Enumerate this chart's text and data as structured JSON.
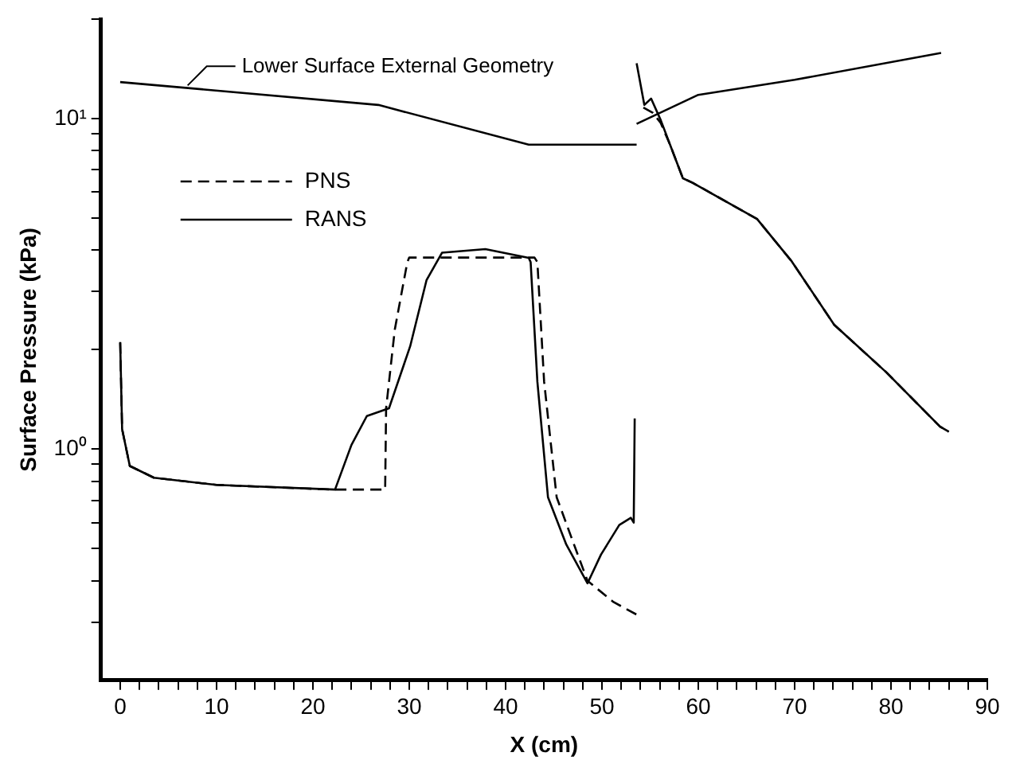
{
  "chart_data": {
    "type": "line",
    "xlabel": "X (cm)",
    "ylabel": "Surface Pressure (kPa)",
    "log": "y",
    "grid": false,
    "legend": "top left",
    "marker": "none",
    "xlim": [
      -2,
      90
    ],
    "ylim": [
      0.2,
      20
    ],
    "xticks": [
      0,
      {
        "value": 2,
        "label": null
      },
      {
        "value": 4,
        "label": null
      },
      {
        "value": 6,
        "label": null
      },
      {
        "value": 8,
        "label": null
      },
      10,
      {
        "value": 12,
        "label": null
      },
      {
        "value": 14,
        "label": null
      },
      {
        "value": 16,
        "label": null
      },
      {
        "value": 18,
        "label": null
      },
      20,
      {
        "value": 22,
        "label": null
      },
      {
        "value": 24,
        "label": null
      },
      {
        "value": 26,
        "label": null
      },
      {
        "value": 28,
        "label": null
      },
      30,
      {
        "value": 32,
        "label": null
      },
      {
        "value": 34,
        "label": null
      },
      {
        "value": 36,
        "label": null
      },
      {
        "value": 38,
        "label": null
      },
      40,
      {
        "value": 42,
        "label": null
      },
      {
        "value": 44,
        "label": null
      },
      {
        "value": 46,
        "label": null
      },
      {
        "value": 48,
        "label": null
      },
      50,
      {
        "value": 52,
        "label": null
      },
      {
        "value": 54,
        "label": null
      },
      {
        "value": 56,
        "label": null
      },
      {
        "value": 58,
        "label": null
      },
      60,
      {
        "value": 62,
        "label": null
      },
      {
        "value": 64,
        "label": null
      },
      {
        "value": 66,
        "label": null
      },
      {
        "value": 68,
        "label": null
      },
      70,
      {
        "value": 72,
        "label": null
      },
      {
        "value": 74,
        "label": null
      },
      {
        "value": 76,
        "label": null
      },
      {
        "value": 78,
        "label": null
      },
      80,
      {
        "value": 82,
        "label": null
      },
      {
        "value": 84,
        "label": null
      },
      {
        "value": 86,
        "label": null
      },
      {
        "value": 88,
        "label": null
      },
      90
    ],
    "yticks": [
      {
        "value": 0.3,
        "label": null
      },
      {
        "value": 0.4,
        "label": null
      },
      {
        "value": 0.5,
        "label": null
      },
      {
        "value": 0.6,
        "label": null
      },
      {
        "value": 0.7,
        "label": null
      },
      {
        "value": 0.8,
        "label": null
      },
      {
        "value": 0.9,
        "label": null
      },
      {
        "value": 1,
        "label": "10⁰"
      },
      {
        "value": 2,
        "label": null
      },
      {
        "value": 3,
        "label": null
      },
      {
        "value": 4,
        "label": null
      },
      {
        "value": 5,
        "label": null
      },
      {
        "value": 6,
        "label": null
      },
      {
        "value": 7,
        "label": null
      },
      {
        "value": 8,
        "label": null
      },
      {
        "value": 9,
        "label": null
      },
      {
        "value": 10,
        "label": "10¹"
      },
      {
        "value": 20,
        "label": null
      }
    ],
    "annotations": [
      {
        "text": "Lower Surface External Geometry",
        "x": 7,
        "y": 12.6
      }
    ],
    "series": [
      {
        "name": "PNS",
        "color": "#000000",
        "line_style": "dashed",
        "x": [
          0,
          0.2,
          1,
          3.5,
          10,
          22,
          27.5,
          27.6,
          28.5,
          29.8,
          30,
          43,
          43.3,
          44,
          45.3,
          47.1,
          48.5,
          51.2,
          53.7
        ],
        "values": [
          2.1,
          1.15,
          0.89,
          0.82,
          0.78,
          0.755,
          0.755,
          1.33,
          2.3,
          3.68,
          3.8,
          3.8,
          3.68,
          1.6,
          0.716,
          0.515,
          0.4,
          0.345,
          0.315
        ]
      },
      {
        "name": "RANS",
        "color": "#000000",
        "line_style": "solid",
        "x": [
          0,
          0.2,
          1,
          3.5,
          10,
          22.3,
          24,
          25.6,
          27.9,
          30.1,
          31.8,
          33.4,
          37.9,
          42.4,
          42.6,
          43.3,
          44.4,
          46.3,
          48.5,
          49.9,
          51.8,
          53.0,
          53.3,
          53.4
        ],
        "values": [
          2.11,
          1.15,
          0.89,
          0.82,
          0.78,
          0.755,
          1.03,
          1.26,
          1.33,
          2.05,
          3.25,
          3.93,
          4.03,
          3.79,
          3.68,
          1.6,
          0.716,
          0.515,
          0.393,
          0.48,
          0.59,
          0.62,
          0.6,
          1.24
        ]
      },
      {
        "color": "#000000",
        "line_style": "dashed",
        "x": [
          54.3,
          55.3,
          56.1,
          57.1,
          58.4,
          59.4,
          66.1,
          69.7,
          74.1,
          79.5,
          85.1,
          86
        ],
        "values": [
          10.8,
          10.4,
          9.7,
          8.3,
          6.6,
          6.4,
          4.97,
          3.7,
          2.38,
          1.71,
          1.17,
          1.13
        ]
      },
      {
        "color": "#000000",
        "line_style": "solid",
        "x": [
          53.6,
          54.4,
          55.1,
          56.1,
          57.1,
          58.4,
          59.4,
          66.1,
          69.7,
          74.1,
          79.5,
          85.1,
          86
        ],
        "values": [
          14.7,
          11,
          11.5,
          9.9,
          8.3,
          6.6,
          6.4,
          4.97,
          3.7,
          2.38,
          1.71,
          1.17,
          1.13
        ]
      },
      {
        "color": "#000000",
        "line_style": "solid",
        "x": [
          0,
          26.8,
          42.4,
          53.6
        ],
        "values": [
          12.9,
          11,
          8.34,
          8.34
        ]
      },
      {
        "color": "#000000",
        "line_style": "solid",
        "x": [
          53.6,
          60,
          70,
          85.2
        ],
        "values": [
          9.64,
          11.8,
          13.1,
          15.8
        ]
      }
    ]
  }
}
